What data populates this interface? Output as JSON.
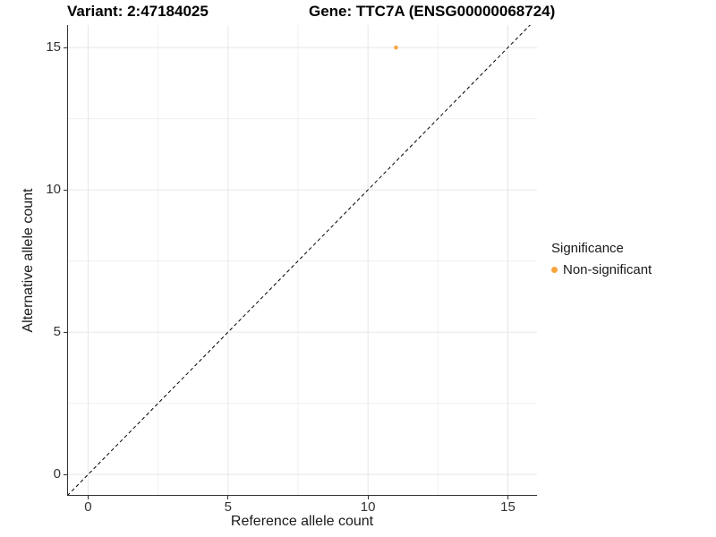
{
  "titles": {
    "variant": "Variant: 2:47184025",
    "gene": "Gene: TTC7A (ENSG00000068724)"
  },
  "legend": {
    "title": "Significance",
    "items": [
      {
        "label": "Non-significant",
        "color": "#F8A43D",
        "marker": "circle-icon"
      }
    ]
  },
  "chart_data": {
    "type": "scatter",
    "title": "Variant: 2:47184025",
    "subtitle": "Gene: TTC7A (ENSG00000068724)",
    "xlabel": "Reference allele count",
    "ylabel": "Alternative allele count",
    "x_ticks": [
      0,
      5,
      10,
      15
    ],
    "y_ticks": [
      0,
      5,
      10,
      15
    ],
    "x_minor_ticks": [
      2.5,
      7.5,
      12.5
    ],
    "y_minor_ticks": [
      2.5,
      7.5,
      12.5
    ],
    "xlim": [
      -0.75,
      16.04
    ],
    "ylim": [
      -0.75,
      15.79
    ],
    "grid": "major+minor",
    "grid_major_color": "#E6E6E6",
    "grid_minor_color": "#F0F0F0",
    "axis_line_color": "#333333",
    "legend_title": "Significance",
    "legend_position": "right",
    "reference_line": {
      "type": "identity y=x",
      "style": "dashed",
      "color": "#000000"
    },
    "series": [
      {
        "name": "Non-significant",
        "color": "#F8A43D",
        "marker": "circle",
        "points": [
          {
            "x": 11,
            "y": 15
          }
        ]
      }
    ]
  }
}
